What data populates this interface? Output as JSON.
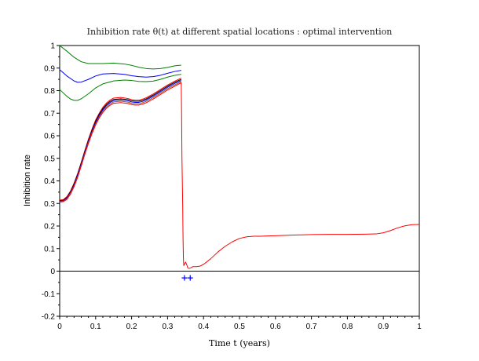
{
  "chart_data": {
    "type": "line",
    "title": "Inhibition rate θ(t) at different spatial locations :  optimal intervention",
    "xlabel": "Time t (years)",
    "ylabel": "Inhibition rate",
    "xlim": [
      0,
      1
    ],
    "ylim": [
      -0.2,
      1
    ],
    "x_ticks": [
      "0",
      "0.1",
      "0.2",
      "0.3",
      "0.4",
      "0.5",
      "0.6",
      "0.7",
      "0.8",
      "0.9",
      "1"
    ],
    "y_ticks": [
      "-0.2",
      "-0.1",
      "0",
      "0.1",
      "0.2",
      "0.3",
      "0.4",
      "0.5",
      "0.6",
      "0.7",
      "0.8",
      "0.9",
      "1"
    ],
    "grid": false,
    "legend": "none",
    "zero_line": true,
    "series": [
      {
        "color": "#008000",
        "x": [
          0,
          0.02,
          0.04,
          0.06,
          0.08,
          0.1,
          0.12,
          0.15,
          0.18,
          0.2,
          0.22,
          0.24,
          0.26,
          0.28,
          0.3,
          0.32,
          0.338
        ],
        "y": [
          1.0,
          0.975,
          0.948,
          0.928,
          0.92,
          0.92,
          0.92,
          0.922,
          0.918,
          0.912,
          0.904,
          0.898,
          0.896,
          0.898,
          0.903,
          0.91,
          0.913
        ]
      },
      {
        "color": "#0000ff",
        "x": [
          0,
          0.02,
          0.04,
          0.05,
          0.06,
          0.08,
          0.1,
          0.12,
          0.15,
          0.18,
          0.2,
          0.22,
          0.24,
          0.26,
          0.28,
          0.3,
          0.32,
          0.338
        ],
        "y": [
          0.893,
          0.865,
          0.843,
          0.837,
          0.838,
          0.85,
          0.865,
          0.874,
          0.876,
          0.872,
          0.866,
          0.862,
          0.86,
          0.862,
          0.868,
          0.877,
          0.885,
          0.89
        ]
      },
      {
        "color": "#008000",
        "x": [
          0,
          0.02,
          0.03,
          0.04,
          0.05,
          0.06,
          0.08,
          0.1,
          0.12,
          0.15,
          0.18,
          0.2,
          0.22,
          0.24,
          0.26,
          0.28,
          0.3,
          0.32,
          0.338
        ],
        "y": [
          0.805,
          0.775,
          0.763,
          0.757,
          0.757,
          0.764,
          0.786,
          0.812,
          0.83,
          0.843,
          0.847,
          0.845,
          0.841,
          0.84,
          0.842,
          0.85,
          0.86,
          0.868,
          0.872
        ]
      },
      {
        "color": "#ff0000",
        "x": [
          0,
          0.01,
          0.02,
          0.03,
          0.04,
          0.05,
          0.06,
          0.07,
          0.08,
          0.09,
          0.1,
          0.11,
          0.12,
          0.13,
          0.14,
          0.15,
          0.17,
          0.19,
          0.2,
          0.21,
          0.22,
          0.23,
          0.24,
          0.26,
          0.28,
          0.3,
          0.32,
          0.338
        ],
        "y": [
          0.315,
          0.317,
          0.33,
          0.355,
          0.39,
          0.433,
          0.483,
          0.535,
          0.585,
          0.63,
          0.67,
          0.7,
          0.726,
          0.745,
          0.758,
          0.767,
          0.77,
          0.765,
          0.76,
          0.758,
          0.758,
          0.762,
          0.768,
          0.785,
          0.805,
          0.825,
          0.842,
          0.856
        ]
      },
      {
        "color": "#000000",
        "x": [
          0,
          0.01,
          0.02,
          0.03,
          0.04,
          0.05,
          0.06,
          0.07,
          0.08,
          0.09,
          0.1,
          0.11,
          0.12,
          0.13,
          0.14,
          0.15,
          0.17,
          0.19,
          0.2,
          0.21,
          0.22,
          0.23,
          0.24,
          0.26,
          0.28,
          0.3,
          0.32,
          0.338
        ],
        "y": [
          0.312,
          0.314,
          0.327,
          0.351,
          0.386,
          0.429,
          0.479,
          0.531,
          0.58,
          0.625,
          0.664,
          0.695,
          0.72,
          0.739,
          0.752,
          0.761,
          0.764,
          0.76,
          0.755,
          0.753,
          0.753,
          0.757,
          0.763,
          0.78,
          0.8,
          0.82,
          0.837,
          0.85
        ]
      },
      {
        "color": "#0000ff",
        "x": [
          0,
          0.01,
          0.02,
          0.03,
          0.04,
          0.05,
          0.06,
          0.07,
          0.08,
          0.09,
          0.1,
          0.11,
          0.12,
          0.13,
          0.14,
          0.15,
          0.17,
          0.19,
          0.2,
          0.21,
          0.22,
          0.23,
          0.24,
          0.26,
          0.28,
          0.3,
          0.32,
          0.338
        ],
        "y": [
          0.31,
          0.312,
          0.324,
          0.348,
          0.382,
          0.425,
          0.475,
          0.527,
          0.576,
          0.62,
          0.659,
          0.69,
          0.715,
          0.734,
          0.747,
          0.756,
          0.759,
          0.755,
          0.75,
          0.748,
          0.748,
          0.752,
          0.758,
          0.775,
          0.795,
          0.815,
          0.832,
          0.845
        ]
      },
      {
        "color": "#a0522d",
        "x": [
          0,
          0.01,
          0.02,
          0.03,
          0.04,
          0.05,
          0.06,
          0.07,
          0.08,
          0.09,
          0.1,
          0.11,
          0.12,
          0.13,
          0.14,
          0.15,
          0.17,
          0.19,
          0.2,
          0.21,
          0.22,
          0.23,
          0.24,
          0.26,
          0.28,
          0.3,
          0.32,
          0.338
        ],
        "y": [
          0.308,
          0.31,
          0.321,
          0.345,
          0.378,
          0.42,
          0.47,
          0.522,
          0.571,
          0.615,
          0.653,
          0.684,
          0.709,
          0.728,
          0.741,
          0.75,
          0.753,
          0.749,
          0.744,
          0.742,
          0.742,
          0.746,
          0.752,
          0.769,
          0.789,
          0.809,
          0.826,
          0.84
        ]
      },
      {
        "color": "#ff0000",
        "x": [
          0,
          0.01,
          0.02,
          0.03,
          0.04,
          0.05,
          0.06,
          0.07,
          0.08,
          0.09,
          0.1,
          0.11,
          0.12,
          0.13,
          0.14,
          0.15,
          0.17,
          0.19,
          0.2,
          0.21,
          0.22,
          0.23,
          0.24,
          0.26,
          0.28,
          0.3,
          0.32,
          0.338,
          0.339,
          0.34,
          0.342,
          0.343,
          0.344,
          0.345,
          0.347,
          0.35,
          0.353,
          0.356,
          0.36,
          0.365,
          0.37,
          0.38,
          0.39,
          0.4,
          0.42,
          0.44,
          0.46,
          0.48,
          0.5,
          0.52,
          0.54,
          0.56,
          0.58,
          0.6,
          0.65,
          0.7,
          0.75,
          0.8,
          0.85,
          0.88,
          0.9,
          0.92,
          0.94,
          0.96,
          0.98,
          1.0
        ],
        "y": [
          0.306,
          0.308,
          0.318,
          0.341,
          0.374,
          0.416,
          0.466,
          0.518,
          0.566,
          0.61,
          0.648,
          0.679,
          0.703,
          0.722,
          0.735,
          0.744,
          0.747,
          0.743,
          0.738,
          0.736,
          0.736,
          0.74,
          0.746,
          0.763,
          0.783,
          0.803,
          0.82,
          0.835,
          0.7,
          0.5,
          0.3,
          0.15,
          0.06,
          0.025,
          0.03,
          0.04,
          0.03,
          0.015,
          0.012,
          0.015,
          0.02,
          0.02,
          0.022,
          0.03,
          0.055,
          0.085,
          0.11,
          0.13,
          0.145,
          0.152,
          0.155,
          0.155,
          0.156,
          0.157,
          0.16,
          0.162,
          0.163,
          0.163,
          0.164,
          0.165,
          0.17,
          0.18,
          0.192,
          0.201,
          0.206,
          0.207
        ]
      }
    ],
    "markers": {
      "color": "#0000ff",
      "symbol": "+",
      "points": [
        [
          0.347,
          -0.03
        ],
        [
          0.363,
          -0.03
        ]
      ]
    }
  }
}
